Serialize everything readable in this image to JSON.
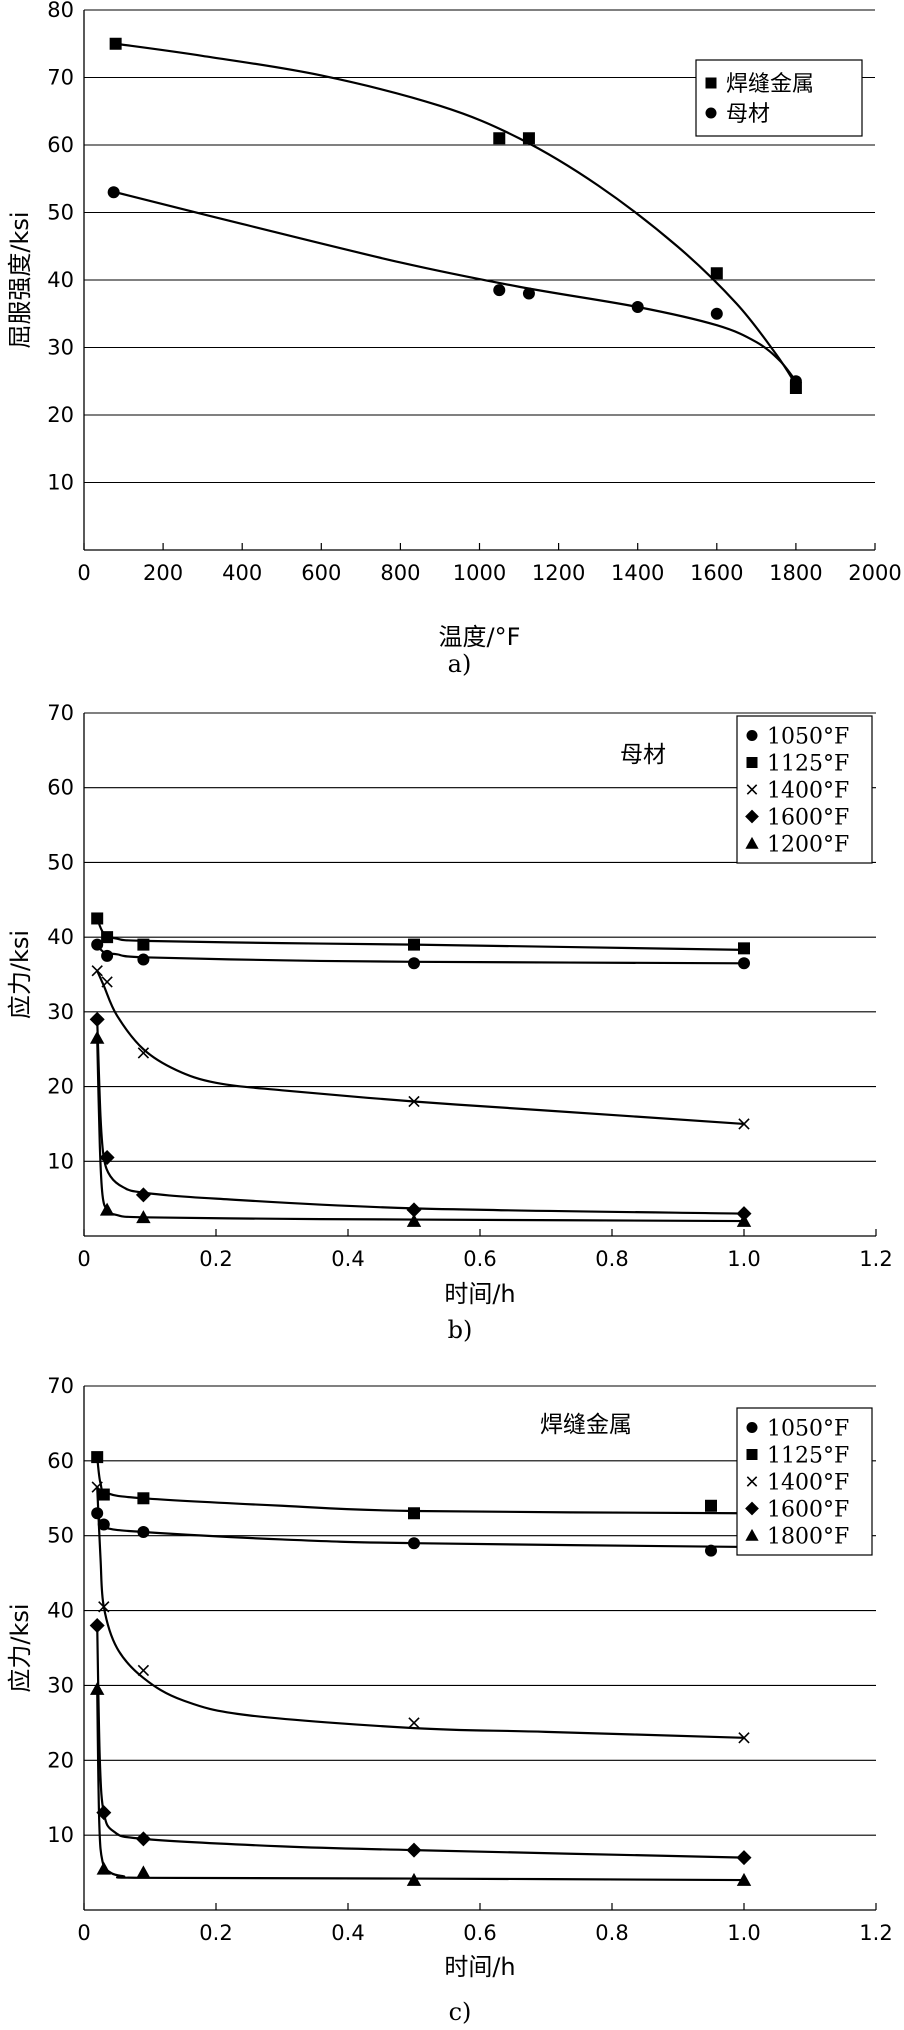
{
  "chart_data": [
    {
      "type": "scatter",
      "panel_label": "a)",
      "xlabel": "温度/°F",
      "ylabel": "屈服强度/ksi",
      "xlim": [
        0,
        2000
      ],
      "ylim": [
        0,
        80
      ],
      "xticks": [
        0,
        200,
        400,
        600,
        800,
        1000,
        1200,
        1400,
        1600,
        1800,
        2000
      ],
      "yticks": [
        10,
        20,
        30,
        40,
        50,
        60,
        70,
        80
      ],
      "grid": "horizontal",
      "legend_position": "top-right",
      "annotation": "",
      "series": [
        {
          "name": "焊缝金属",
          "marker": "square",
          "x": [
            80,
            1050,
            1125,
            1600,
            1800
          ],
          "y": [
            75,
            61,
            61,
            41,
            24
          ]
        },
        {
          "name": "母材",
          "marker": "circle",
          "x": [
            75,
            1050,
            1125,
            1400,
            1600,
            1800
          ],
          "y": [
            53,
            38.5,
            38,
            36,
            35,
            25
          ]
        }
      ],
      "fit_lines": [
        {
          "series": "焊缝金属",
          "x": [
            80,
            300,
            600,
            900,
            1100,
            1300,
            1500,
            1650,
            1750,
            1800
          ],
          "y": [
            75,
            73.2,
            70.3,
            65.8,
            61,
            54,
            45,
            36.5,
            29,
            24.5
          ]
        },
        {
          "series": "母材",
          "x": [
            80,
            400,
            800,
            1100,
            1400,
            1600,
            1700,
            1760,
            1800
          ],
          "y": [
            53,
            48.3,
            42.6,
            39,
            36,
            33.3,
            30.8,
            28,
            25
          ]
        }
      ]
    },
    {
      "type": "scatter",
      "panel_label": "b)",
      "xlabel": "时间/h",
      "ylabel": "应力/ksi",
      "xlim": [
        0,
        1.2
      ],
      "ylim": [
        0,
        70
      ],
      "xticks": [
        0,
        0.2,
        0.4,
        0.6,
        0.8,
        1.0,
        1.2
      ],
      "yticks": [
        10,
        20,
        30,
        40,
        50,
        60,
        70
      ],
      "grid": "horizontal",
      "legend_position": "top-right",
      "annotation": "母材",
      "series": [
        {
          "name": "1050°F",
          "marker": "circle",
          "x": [
            0.02,
            0.035,
            0.09,
            0.5,
            1.0
          ],
          "y": [
            39,
            37.5,
            37,
            36.5,
            36.5
          ]
        },
        {
          "name": "1125°F",
          "marker": "square",
          "x": [
            0.02,
            0.035,
            0.09,
            0.5,
            1.0
          ],
          "y": [
            42.5,
            40,
            39,
            39,
            38.5
          ]
        },
        {
          "name": "1400°F",
          "marker": "cross",
          "x": [
            0.02,
            0.035,
            0.09,
            0.5,
            1.0
          ],
          "y": [
            35.5,
            34,
            24.5,
            18,
            15
          ]
        },
        {
          "name": "1600°F",
          "marker": "diamond",
          "x": [
            0.02,
            0.035,
            0.09,
            0.5,
            1.0
          ],
          "y": [
            29,
            10.5,
            5.5,
            3.5,
            3
          ]
        },
        {
          "name": "1200°F",
          "marker": "triangle",
          "x": [
            0.02,
            0.035,
            0.09,
            0.5,
            1.0
          ],
          "y": [
            26.5,
            3.5,
            2.5,
            2,
            2
          ]
        }
      ],
      "fit_lines": [
        {
          "series": "1050°F",
          "x": [
            0.02,
            0.03,
            0.05,
            0.09,
            0.3,
            0.5,
            1.0
          ],
          "y": [
            39,
            38,
            37.7,
            37.3,
            36.9,
            36.7,
            36.5
          ]
        },
        {
          "series": "1125°F",
          "x": [
            0.02,
            0.03,
            0.05,
            0.09,
            0.3,
            0.5,
            1.0
          ],
          "y": [
            42.5,
            40.5,
            39.8,
            39.5,
            39.2,
            39,
            38.3
          ]
        },
        {
          "series": "1400°F",
          "x": [
            0.02,
            0.03,
            0.05,
            0.09,
            0.14,
            0.2,
            0.3,
            0.5,
            0.7,
            1.0
          ],
          "y": [
            35.5,
            33.5,
            29.5,
            25,
            22.2,
            20.5,
            19.5,
            18,
            16.8,
            15
          ]
        },
        {
          "series": "1600°F",
          "x": [
            0.02,
            0.025,
            0.03,
            0.04,
            0.06,
            0.09,
            0.2,
            0.5,
            1.0
          ],
          "y": [
            29,
            16,
            10.5,
            8,
            6.5,
            5.8,
            5,
            3.7,
            3
          ]
        },
        {
          "series": "1200°F",
          "x": [
            0.02,
            0.024,
            0.028,
            0.035,
            0.05,
            0.09,
            0.3,
            0.5,
            1.0
          ],
          "y": [
            26.5,
            12,
            5.5,
            3.5,
            2.8,
            2.5,
            2.3,
            2.2,
            2
          ]
        }
      ]
    },
    {
      "type": "scatter",
      "panel_label": "c)",
      "xlabel": "时间/h",
      "ylabel": "应力/ksi",
      "xlim": [
        0,
        1.2
      ],
      "ylim": [
        0,
        70
      ],
      "xticks": [
        0,
        0.2,
        0.4,
        0.6,
        0.8,
        1.0,
        1.2
      ],
      "yticks": [
        10,
        20,
        30,
        40,
        50,
        60,
        70
      ],
      "grid": "horizontal",
      "legend_position": "top-right",
      "annotation": "焊缝金属",
      "series": [
        {
          "name": "1050°F",
          "marker": "circle",
          "x": [
            0.02,
            0.03,
            0.09,
            0.5,
            0.95
          ],
          "y": [
            53,
            51.5,
            50.5,
            49,
            48
          ]
        },
        {
          "name": "1125°F",
          "marker": "square",
          "x": [
            0.02,
            0.03,
            0.09,
            0.5,
            0.95
          ],
          "y": [
            60.5,
            55.5,
            55,
            53,
            54
          ]
        },
        {
          "name": "1400°F",
          "marker": "cross",
          "x": [
            0.02,
            0.03,
            0.09,
            0.5,
            1.0
          ],
          "y": [
            56.5,
            40.5,
            32,
            25,
            23
          ]
        },
        {
          "name": "1600°F",
          "marker": "diamond",
          "x": [
            0.02,
            0.03,
            0.09,
            0.5,
            1.0
          ],
          "y": [
            38,
            13,
            9.5,
            8,
            7
          ]
        },
        {
          "name": "1800°F",
          "marker": "triangle",
          "x": [
            0.02,
            0.03,
            0.09,
            0.5,
            1.0
          ],
          "y": [
            29.5,
            5.5,
            5,
            4,
            4
          ]
        }
      ],
      "fit_lines": [
        {
          "series": "1050°F",
          "x": [
            0.02,
            0.025,
            0.035,
            0.09,
            0.3,
            0.5,
            1.0
          ],
          "y": [
            53,
            51.8,
            51,
            50.5,
            49.5,
            49,
            48.5
          ]
        },
        {
          "series": "1125°F",
          "x": [
            0.02,
            0.025,
            0.035,
            0.09,
            0.3,
            0.5,
            1.0
          ],
          "y": [
            60.5,
            57,
            55.7,
            55,
            54,
            53.3,
            53
          ]
        },
        {
          "series": "1400°F",
          "x": [
            0.02,
            0.025,
            0.03,
            0.05,
            0.09,
            0.15,
            0.25,
            0.5,
            0.7,
            1.0
          ],
          "y": [
            56.5,
            47,
            40.5,
            35,
            31,
            28,
            26,
            24.3,
            23.8,
            23
          ]
        },
        {
          "series": "1600°F",
          "x": [
            0.02,
            0.024,
            0.03,
            0.045,
            0.09,
            0.3,
            0.5,
            1.0
          ],
          "y": [
            38,
            20,
            13,
            10.5,
            9.5,
            8.5,
            8,
            7
          ]
        },
        {
          "series": "1800°F",
          "x": [
            0.02,
            0.023,
            0.028,
            0.04,
            0.06,
            0.09,
            0.5,
            1.0
          ],
          "y": [
            29.5,
            12,
            6.5,
            5,
            4.5,
            4.3,
            4.2,
            4
          ]
        }
      ]
    }
  ]
}
